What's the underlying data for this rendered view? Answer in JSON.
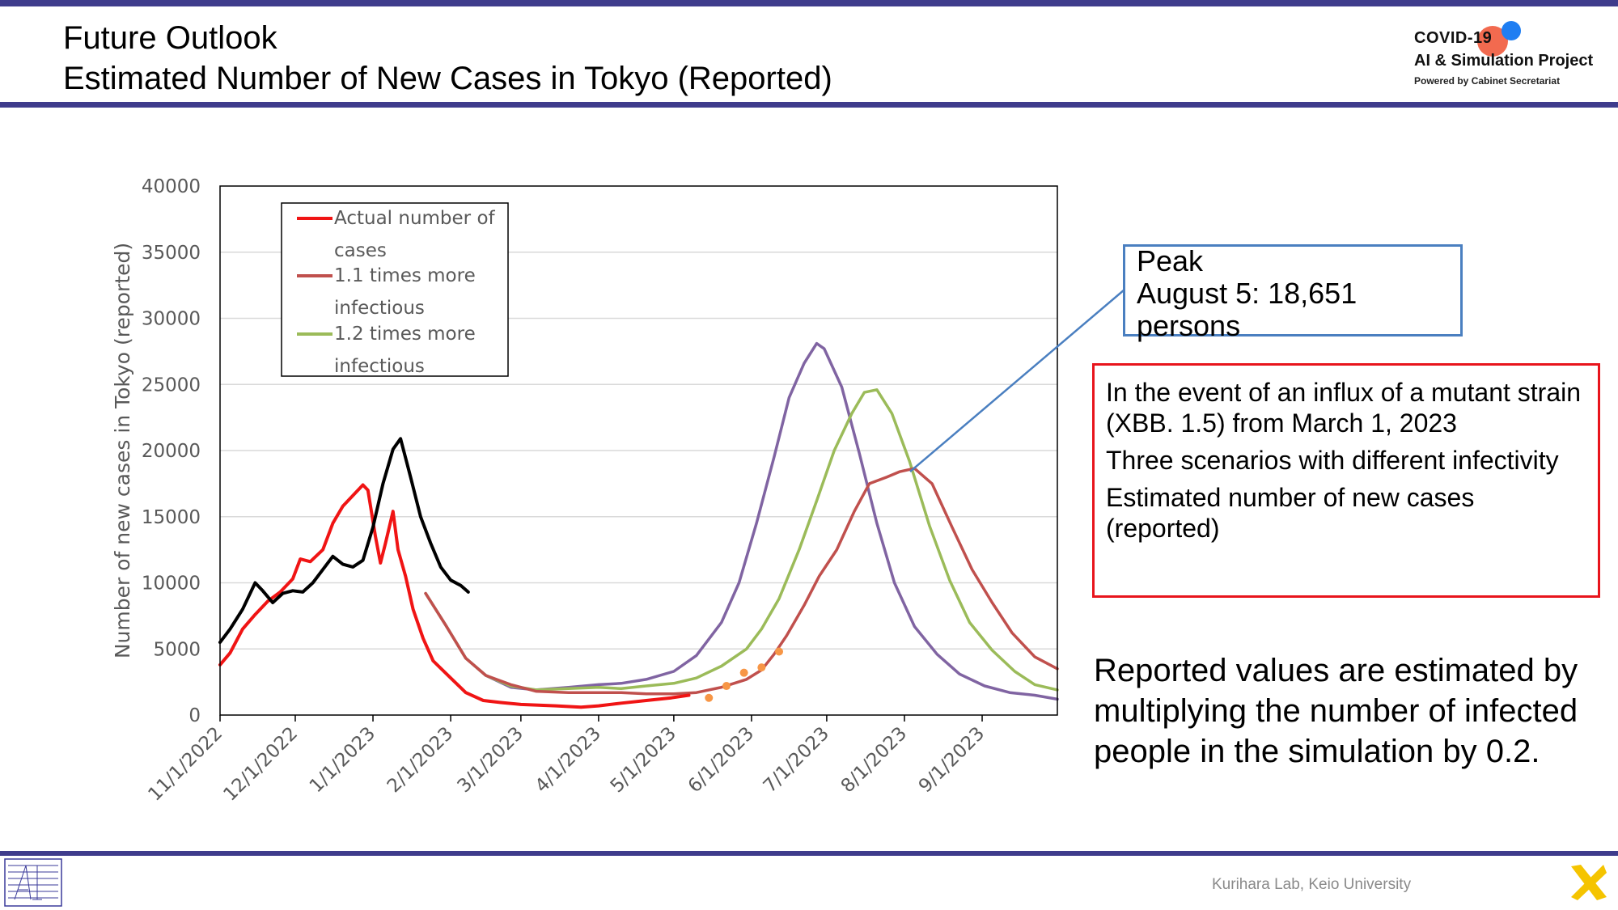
{
  "header": {
    "title_line1": "Future Outlook",
    "title_line2": "Estimated Number of New Cases in Tokyo (Reported)"
  },
  "logo": {
    "line1": "COVID-19",
    "line2": "AI & Simulation Project",
    "line3": "Powered by Cabinet Secretariat"
  },
  "annotations": {
    "peak_line1": "Peak",
    "peak_line2": "August 5: 18,651",
    "peak_line3": "persons",
    "scenario_p1": "In the event of an influx of a mutant strain (XBB. 1.5) from March 1, 2023",
    "scenario_p2": "Three scenarios with different infectivity",
    "scenario_p3": "Estimated number of new cases (reported)",
    "note": "Reported values are estimated by multiplying the number of infected people in the simulation by 0.2."
  },
  "footer": {
    "credit": "Kurihara Lab, Keio University"
  },
  "colors": {
    "header_rule": "#3f3c8c",
    "actual": "#f01414",
    "x11": "#c0504d",
    "x12": "#9bbb59",
    "baseline": "#8064a2",
    "history": "#000000",
    "observed_points": "#f79646"
  },
  "chart_data": {
    "type": "line",
    "ylabel": "Number of new cases in Tokyo (reported)",
    "ylim": [
      0,
      40000
    ],
    "yticks": [
      "0",
      "5000",
      "10000",
      "15000",
      "20000",
      "25000",
      "30000",
      "35000",
      "40000"
    ],
    "xlim": [
      "2022-11-01",
      "2023-10-01"
    ],
    "xticks": [
      "11/1/2022",
      "12/1/2022",
      "1/1/2023",
      "2/1/2023",
      "3/1/2023",
      "4/1/2023",
      "5/1/2023",
      "6/1/2023",
      "7/1/2023",
      "8/1/2023",
      "9/1/2023"
    ],
    "grid": true,
    "legend": [
      "Actual number of cases",
      "1.1 times more infectious",
      "1.2 times more infectious"
    ],
    "series": [
      {
        "name": "Actual number of cases",
        "color": "#f01414",
        "points": [
          [
            "2022-11-01",
            3800
          ],
          [
            "2022-11-05",
            4700
          ],
          [
            "2022-11-10",
            6500
          ],
          [
            "2022-11-15",
            7600
          ],
          [
            "2022-11-20",
            8600
          ],
          [
            "2022-11-25",
            9300
          ],
          [
            "2022-11-30",
            10300
          ],
          [
            "2022-12-03",
            11800
          ],
          [
            "2022-12-07",
            11600
          ],
          [
            "2022-12-12",
            12500
          ],
          [
            "2022-12-16",
            14500
          ],
          [
            "2022-12-20",
            15800
          ],
          [
            "2022-12-24",
            16600
          ],
          [
            "2022-12-28",
            17400
          ],
          [
            "2022-12-30",
            17000
          ],
          [
            "2023-01-02",
            13500
          ],
          [
            "2023-01-04",
            11500
          ],
          [
            "2023-01-06",
            13000
          ],
          [
            "2023-01-09",
            15400
          ],
          [
            "2023-01-11",
            12500
          ],
          [
            "2023-01-14",
            10500
          ],
          [
            "2023-01-17",
            8000
          ],
          [
            "2023-01-21",
            5800
          ],
          [
            "2023-01-25",
            4100
          ],
          [
            "2023-02-01",
            2800
          ],
          [
            "2023-02-07",
            1700
          ],
          [
            "2023-02-14",
            1100
          ],
          [
            "2023-02-21",
            950
          ],
          [
            "2023-03-01",
            800
          ],
          [
            "2023-03-15",
            700
          ],
          [
            "2023-03-25",
            600
          ],
          [
            "2023-04-01",
            700
          ],
          [
            "2023-04-10",
            900
          ],
          [
            "2023-04-20",
            1100
          ],
          [
            "2023-04-30",
            1300
          ],
          [
            "2023-05-07",
            1500
          ]
        ]
      },
      {
        "name": "1.1 times more infectious",
        "color": "#c0504d",
        "points": [
          [
            "2023-01-22",
            9200
          ],
          [
            "2023-01-30",
            6800
          ],
          [
            "2023-02-07",
            4300
          ],
          [
            "2023-02-15",
            3000
          ],
          [
            "2023-02-25",
            2300
          ],
          [
            "2023-03-07",
            1800
          ],
          [
            "2023-03-20",
            1700
          ],
          [
            "2023-04-01",
            1700
          ],
          [
            "2023-04-10",
            1700
          ],
          [
            "2023-04-20",
            1600
          ],
          [
            "2023-05-01",
            1600
          ],
          [
            "2023-05-10",
            1700
          ],
          [
            "2023-05-20",
            2100
          ],
          [
            "2023-05-30",
            2700
          ],
          [
            "2023-06-05",
            3400
          ],
          [
            "2023-06-10",
            4600
          ],
          [
            "2023-06-15",
            6000
          ],
          [
            "2023-06-22",
            8300
          ],
          [
            "2023-06-28",
            10500
          ],
          [
            "2023-07-05",
            12500
          ],
          [
            "2023-07-12",
            15400
          ],
          [
            "2023-07-18",
            17500
          ],
          [
            "2023-07-25",
            18000
          ],
          [
            "2023-07-30",
            18400
          ],
          [
            "2023-08-05",
            18651
          ],
          [
            "2023-08-12",
            17500
          ],
          [
            "2023-08-20",
            14200
          ],
          [
            "2023-08-28",
            11000
          ],
          [
            "2023-09-05",
            8500
          ],
          [
            "2023-09-13",
            6200
          ],
          [
            "2023-09-22",
            4400
          ],
          [
            "2023-10-01",
            3500
          ]
        ]
      },
      {
        "name": "1.2 times more infectious",
        "color": "#9bbb59",
        "points": [
          [
            "2023-01-22",
            9200
          ],
          [
            "2023-01-30",
            6800
          ],
          [
            "2023-02-07",
            4300
          ],
          [
            "2023-02-15",
            3000
          ],
          [
            "2023-02-25",
            2200
          ],
          [
            "2023-03-07",
            1900
          ],
          [
            "2023-03-20",
            2000
          ],
          [
            "2023-04-01",
            2100
          ],
          [
            "2023-04-10",
            2000
          ],
          [
            "2023-04-20",
            2200
          ],
          [
            "2023-05-01",
            2400
          ],
          [
            "2023-05-10",
            2800
          ],
          [
            "2023-05-20",
            3700
          ],
          [
            "2023-05-30",
            5000
          ],
          [
            "2023-06-05",
            6500
          ],
          [
            "2023-06-12",
            8800
          ],
          [
            "2023-06-20",
            12500
          ],
          [
            "2023-06-27",
            16200
          ],
          [
            "2023-07-04",
            20000
          ],
          [
            "2023-07-11",
            22800
          ],
          [
            "2023-07-16",
            24400
          ],
          [
            "2023-07-21",
            24600
          ],
          [
            "2023-07-27",
            22800
          ],
          [
            "2023-08-03",
            19200
          ],
          [
            "2023-08-11",
            14300
          ],
          [
            "2023-08-19",
            10200
          ],
          [
            "2023-08-27",
            7000
          ],
          [
            "2023-09-05",
            4900
          ],
          [
            "2023-09-14",
            3300
          ],
          [
            "2023-09-22",
            2300
          ],
          [
            "2023-10-01",
            1900
          ]
        ]
      },
      {
        "color": "#8064a2",
        "points": [
          [
            "2023-01-22",
            9200
          ],
          [
            "2023-01-30",
            6800
          ],
          [
            "2023-02-07",
            4300
          ],
          [
            "2023-02-15",
            3000
          ],
          [
            "2023-02-25",
            2100
          ],
          [
            "2023-03-07",
            1900
          ],
          [
            "2023-03-20",
            2100
          ],
          [
            "2023-04-01",
            2300
          ],
          [
            "2023-04-10",
            2400
          ],
          [
            "2023-04-20",
            2700
          ],
          [
            "2023-05-01",
            3300
          ],
          [
            "2023-05-10",
            4500
          ],
          [
            "2023-05-20",
            7000
          ],
          [
            "2023-05-27",
            10000
          ],
          [
            "2023-06-03",
            14500
          ],
          [
            "2023-06-10",
            19500
          ],
          [
            "2023-06-16",
            24000
          ],
          [
            "2023-06-22",
            26600
          ],
          [
            "2023-06-27",
            28100
          ],
          [
            "2023-06-30",
            27700
          ],
          [
            "2023-07-07",
            24800
          ],
          [
            "2023-07-14",
            19800
          ],
          [
            "2023-07-21",
            14500
          ],
          [
            "2023-07-28",
            10000
          ],
          [
            "2023-08-05",
            6700
          ],
          [
            "2023-08-14",
            4600
          ],
          [
            "2023-08-23",
            3100
          ],
          [
            "2023-09-02",
            2200
          ],
          [
            "2023-09-12",
            1700
          ],
          [
            "2023-09-22",
            1500
          ],
          [
            "2023-10-01",
            1200
          ]
        ]
      },
      {
        "color": "#000000",
        "points": [
          [
            "2022-11-01",
            5500
          ],
          [
            "2022-11-05",
            6500
          ],
          [
            "2022-11-10",
            8000
          ],
          [
            "2022-11-15",
            10000
          ],
          [
            "2022-11-18",
            9400
          ],
          [
            "2022-11-22",
            8500
          ],
          [
            "2022-11-26",
            9200
          ],
          [
            "2022-11-30",
            9400
          ],
          [
            "2022-12-04",
            9300
          ],
          [
            "2022-12-08",
            10000
          ],
          [
            "2022-12-12",
            11000
          ],
          [
            "2022-12-16",
            12000
          ],
          [
            "2022-12-20",
            11400
          ],
          [
            "2022-12-24",
            11200
          ],
          [
            "2022-12-28",
            11700
          ],
          [
            "2023-01-01",
            14200
          ],
          [
            "2023-01-05",
            17500
          ],
          [
            "2023-01-09",
            20100
          ],
          [
            "2023-01-12",
            20900
          ],
          [
            "2023-01-16",
            18000
          ],
          [
            "2023-01-20",
            15000
          ],
          [
            "2023-01-24",
            13000
          ],
          [
            "2023-01-28",
            11200
          ],
          [
            "2023-02-01",
            10200
          ],
          [
            "2023-02-05",
            9800
          ],
          [
            "2023-02-08",
            9300
          ]
        ]
      }
    ],
    "observed_points": [
      [
        "2023-05-15",
        1300
      ],
      [
        "2023-05-22",
        2200
      ],
      [
        "2023-05-29",
        3200
      ],
      [
        "2023-06-05",
        3600
      ],
      [
        "2023-06-12",
        4800
      ]
    ]
  }
}
